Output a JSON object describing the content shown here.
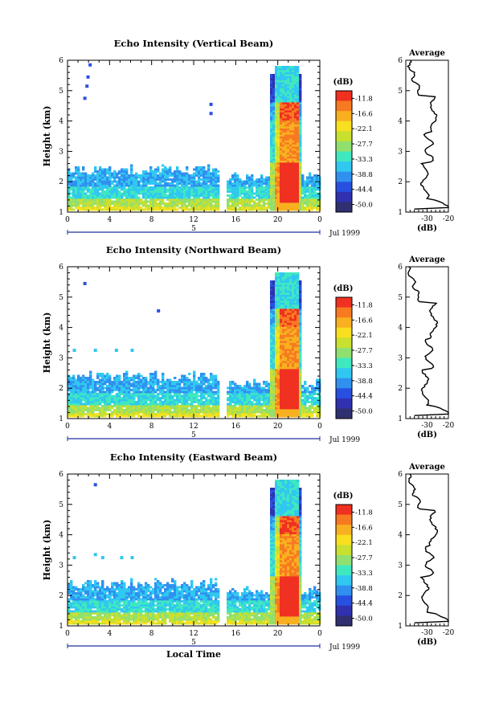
{
  "chart_data": [
    {
      "type": "heatmap",
      "title": "Echo Intensity (Vertical Beam)",
      "ylabel": "Height (km)",
      "yticks": [
        "1",
        "2",
        "3",
        "4",
        "5",
        "6"
      ],
      "xticks": [
        "0",
        "4",
        "8",
        "12",
        "16",
        "20",
        "0"
      ],
      "date_marker": "5",
      "date_label": "Jul 1999",
      "colorbar": {
        "unit": "(dB)",
        "labels": [
          "-11.8",
          "-16.6",
          "-22.1",
          "-27.7",
          "-33.3",
          "-38.8",
          "-44.4",
          "-50.0"
        ]
      },
      "average": {
        "title": "Average",
        "xlabel": "(dB)",
        "xticks": [
          "-30",
          "-20"
        ],
        "yticks": [
          "1",
          "2",
          "3",
          "4",
          "5",
          "6"
        ]
      }
    },
    {
      "type": "heatmap",
      "title": "Echo Intensity (Northward Beam)",
      "ylabel": "Height (km)",
      "yticks": [
        "1",
        "2",
        "3",
        "4",
        "5",
        "6"
      ],
      "xticks": [
        "0",
        "4",
        "8",
        "12",
        "16",
        "20",
        "0"
      ],
      "date_marker": "5",
      "date_label": "Jul 1999",
      "colorbar": {
        "unit": "(dB)",
        "labels": [
          "-11.8",
          "-16.6",
          "-22.1",
          "-27.7",
          "-33.3",
          "-38.8",
          "-44.4",
          "-50.0"
        ]
      },
      "average": {
        "title": "Average",
        "xlabel": "(dB)",
        "xticks": [
          "-30",
          "-20"
        ],
        "yticks": [
          "1",
          "2",
          "3",
          "4",
          "5",
          "6"
        ]
      }
    },
    {
      "type": "heatmap",
      "title": "Echo Intensity (Eastward Beam)",
      "ylabel": "Height (km)",
      "xlabel": "Local Time",
      "yticks": [
        "1",
        "2",
        "3",
        "4",
        "5",
        "6"
      ],
      "xticks": [
        "0",
        "4",
        "8",
        "12",
        "16",
        "20",
        "0"
      ],
      "date_marker": "5",
      "date_label": "Jul 1999",
      "colorbar": {
        "unit": "(dB)",
        "labels": [
          "-11.8",
          "-16.6",
          "-22.1",
          "-27.7",
          "-33.3",
          "-38.8",
          "-44.4",
          "-50.0"
        ]
      },
      "average": {
        "title": "Average",
        "xlabel": "(dB)",
        "xticks": [
          "-30",
          "-20"
        ],
        "yticks": [
          "1",
          "2",
          "3",
          "4",
          "5",
          "6"
        ]
      }
    }
  ],
  "colors": [
    "#f03020",
    "#f87a20",
    "#f8b020",
    "#f8e020",
    "#c8e030",
    "#90e070",
    "#40e8c0",
    "#30c8f0",
    "#3090f0",
    "#2850e0",
    "#3030b0",
    "#303070"
  ]
}
